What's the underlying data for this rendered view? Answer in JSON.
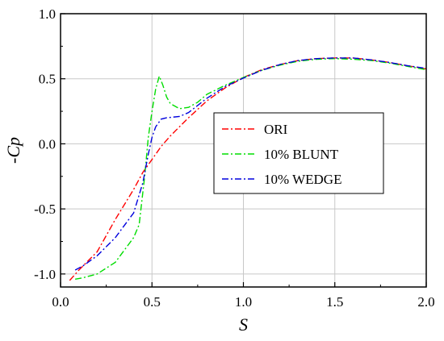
{
  "chart_data": {
    "type": "line",
    "title": "",
    "xlabel": "S",
    "ylabel": "-Cp",
    "xlim": [
      0.0,
      2.0
    ],
    "ylim": [
      -1.1,
      1.0
    ],
    "x_ticks": [
      "0.0",
      "0.5",
      "1.0",
      "1.5",
      "2.0"
    ],
    "y_ticks": [
      "-1.0",
      "-0.5",
      "0.0",
      "0.5",
      "1.0"
    ],
    "grid": true,
    "legend": {
      "placement": "center-right",
      "entries": [
        "ORI",
        "10% BLUNT",
        "10% WEDGE"
      ]
    },
    "series": [
      {
        "name": "ORI",
        "color": "#ff0000",
        "dash": "dash-dot",
        "points": [
          [
            0.05,
            -1.05
          ],
          [
            0.1,
            -0.97
          ],
          [
            0.2,
            -0.83
          ],
          [
            0.3,
            -0.58
          ],
          [
            0.4,
            -0.35
          ],
          [
            0.45,
            -0.22
          ],
          [
            0.5,
            -0.12
          ],
          [
            0.55,
            -0.02
          ],
          [
            0.6,
            0.06
          ],
          [
            0.7,
            0.2
          ],
          [
            0.8,
            0.33
          ],
          [
            0.9,
            0.43
          ],
          [
            1.0,
            0.51
          ],
          [
            1.1,
            0.57
          ],
          [
            1.2,
            0.61
          ],
          [
            1.3,
            0.64
          ],
          [
            1.4,
            0.655
          ],
          [
            1.5,
            0.66
          ],
          [
            1.6,
            0.66
          ],
          [
            1.7,
            0.645
          ],
          [
            1.8,
            0.625
          ],
          [
            1.9,
            0.6
          ],
          [
            2.0,
            0.575
          ]
        ]
      },
      {
        "name": "10% BLUNT",
        "color": "#00dd00",
        "dash": "dash-dot",
        "points": [
          [
            0.08,
            -1.04
          ],
          [
            0.12,
            -1.03
          ],
          [
            0.2,
            -1.0
          ],
          [
            0.3,
            -0.91
          ],
          [
            0.4,
            -0.72
          ],
          [
            0.43,
            -0.62
          ],
          [
            0.46,
            -0.25
          ],
          [
            0.48,
            0.05
          ],
          [
            0.5,
            0.25
          ],
          [
            0.52,
            0.42
          ],
          [
            0.54,
            0.52
          ],
          [
            0.56,
            0.45
          ],
          [
            0.58,
            0.36
          ],
          [
            0.6,
            0.31
          ],
          [
            0.65,
            0.27
          ],
          [
            0.7,
            0.28
          ],
          [
            0.75,
            0.32
          ],
          [
            0.8,
            0.38
          ],
          [
            0.9,
            0.45
          ],
          [
            1.0,
            0.51
          ],
          [
            1.1,
            0.565
          ],
          [
            1.2,
            0.605
          ],
          [
            1.3,
            0.635
          ],
          [
            1.4,
            0.65
          ],
          [
            1.5,
            0.655
          ],
          [
            1.6,
            0.65
          ],
          [
            1.7,
            0.64
          ],
          [
            1.8,
            0.62
          ],
          [
            1.9,
            0.595
          ],
          [
            2.0,
            0.57
          ]
        ]
      },
      {
        "name": "10% WEDGE",
        "color": "#0000dd",
        "dash": "dash-dot",
        "points": [
          [
            0.08,
            -0.97
          ],
          [
            0.12,
            -0.94
          ],
          [
            0.2,
            -0.86
          ],
          [
            0.3,
            -0.72
          ],
          [
            0.4,
            -0.53
          ],
          [
            0.45,
            -0.3
          ],
          [
            0.48,
            -0.08
          ],
          [
            0.5,
            0.05
          ],
          [
            0.52,
            0.13
          ],
          [
            0.55,
            0.19
          ],
          [
            0.58,
            0.2
          ],
          [
            0.65,
            0.21
          ],
          [
            0.7,
            0.24
          ],
          [
            0.8,
            0.35
          ],
          [
            0.9,
            0.44
          ],
          [
            1.0,
            0.505
          ],
          [
            1.1,
            0.565
          ],
          [
            1.2,
            0.61
          ],
          [
            1.3,
            0.64
          ],
          [
            1.4,
            0.655
          ],
          [
            1.5,
            0.66
          ],
          [
            1.6,
            0.66
          ],
          [
            1.7,
            0.645
          ],
          [
            1.8,
            0.625
          ],
          [
            1.9,
            0.6
          ],
          [
            2.0,
            0.58
          ]
        ]
      }
    ]
  }
}
